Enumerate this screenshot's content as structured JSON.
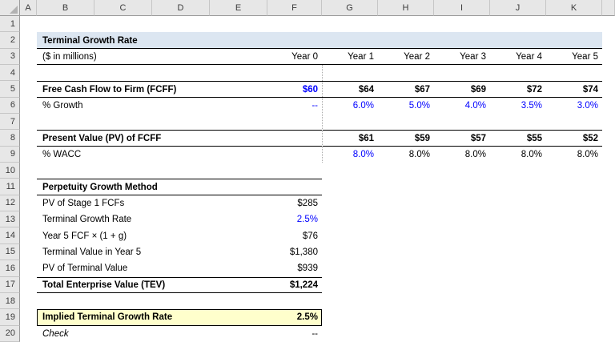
{
  "colors": {
    "header_fill": "#dce6f1",
    "highlight_fill": "#ffffcc",
    "input_text": "#0000ff",
    "grid_header_bg": "#e7e7e7"
  },
  "headers": {
    "cols": [
      "A",
      "B",
      "C",
      "D",
      "E",
      "F",
      "G",
      "H",
      "I",
      "J",
      "K"
    ],
    "rows": [
      "1",
      "2",
      "3",
      "4",
      "5",
      "6",
      "7",
      "8",
      "9",
      "10",
      "11",
      "12",
      "13",
      "14",
      "15",
      "16",
      "17",
      "18",
      "19",
      "20"
    ]
  },
  "model": {
    "title": "Terminal Growth Rate",
    "units": "($ in millions)",
    "year_headers": [
      "Year 0",
      "Year 1",
      "Year 2",
      "Year 3",
      "Year 4",
      "Year 5"
    ],
    "fcff": {
      "label": "Free Cash Flow to Firm (FCFF)",
      "year0": "$60",
      "values": [
        "$64",
        "$67",
        "$69",
        "$72",
        "$74"
      ]
    },
    "growth": {
      "label": "% Growth",
      "year0": "--",
      "values": [
        "6.0%",
        "5.0%",
        "4.0%",
        "3.5%",
        "3.0%"
      ]
    },
    "pv_fcff": {
      "label": "Present Value (PV) of FCFF",
      "values": [
        "$61",
        "$59",
        "$57",
        "$55",
        "$52"
      ]
    },
    "wacc": {
      "label": "% WACC",
      "values": [
        "8.0%",
        "8.0%",
        "8.0%",
        "8.0%",
        "8.0%"
      ]
    },
    "perpetuity": {
      "title": "Perpetuity Growth Method",
      "pv_stage1": {
        "label": "PV of Stage 1 FCFs",
        "value": "$285"
      },
      "terminal_growth": {
        "label": "Terminal Growth Rate",
        "value": "2.5%"
      },
      "year5_fcf": {
        "label": "Year 5 FCF × (1 + g)",
        "value": "$76"
      },
      "terminal_value": {
        "label": "Terminal Value in Year 5",
        "value": "$1,380"
      },
      "pv_terminal": {
        "label": "PV of Terminal Value",
        "value": "$939"
      },
      "tev": {
        "label": "Total Enterprise Value (TEV)",
        "value": "$1,224"
      }
    },
    "implied": {
      "label": "Implied Terminal Growth Rate",
      "value": "2.5%"
    },
    "check": {
      "label": "Check",
      "value": "--"
    }
  }
}
